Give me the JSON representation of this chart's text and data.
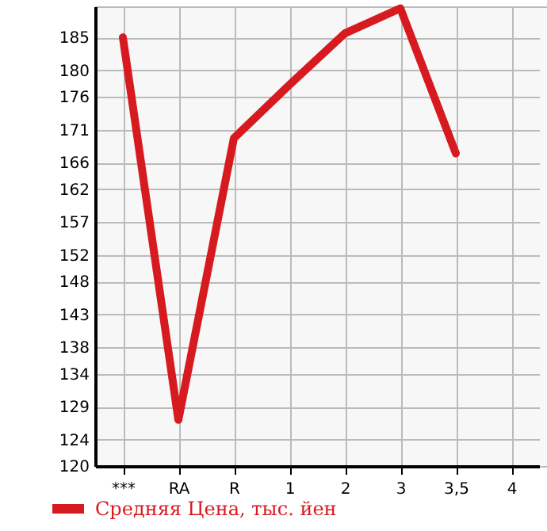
{
  "chart_data": {
    "type": "line",
    "categories": [
      "***",
      "RA",
      "R",
      "1",
      "2",
      "3",
      "3,5",
      "4"
    ],
    "series": [
      {
        "name": "Средняя Цена, тыс. йен",
        "color": "#d71920",
        "values": [
          185,
          127,
          169.7,
          177.8,
          185.6,
          189.4,
          167.4,
          null
        ]
      }
    ],
    "ylim": [
      120,
      189.7
    ],
    "yticks": [
      120,
      124,
      129,
      134,
      138,
      143,
      148,
      152,
      157,
      162,
      166,
      171,
      176,
      180,
      185
    ],
    "grid": true,
    "legend": "bottom",
    "marker": "none",
    "line_style": "solid"
  }
}
